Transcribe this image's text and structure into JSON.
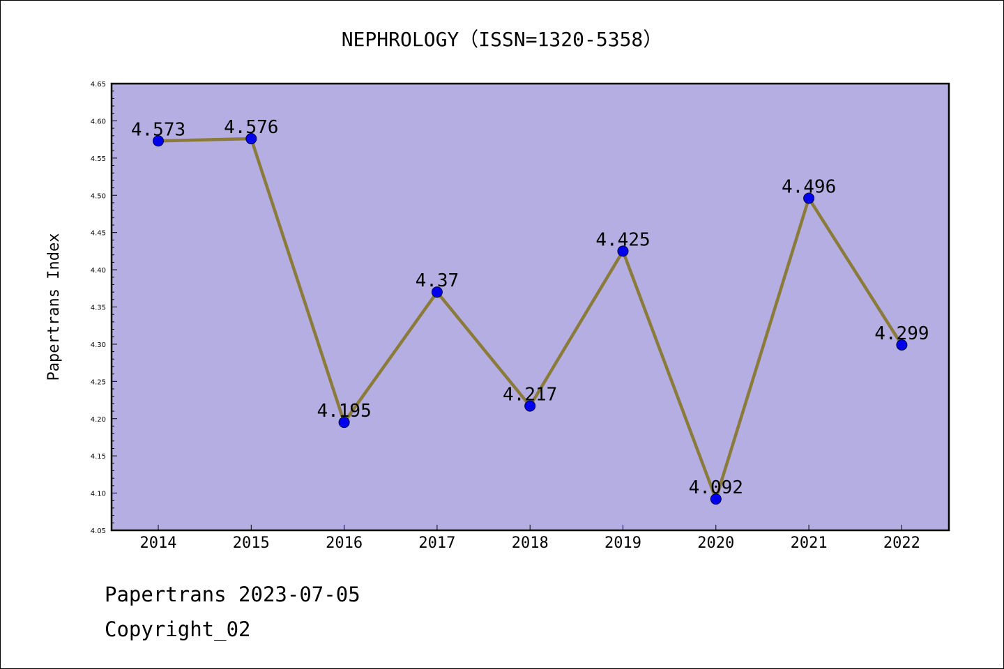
{
  "chart_data": {
    "type": "line",
    "title": "NEPHROLOGY（ISSN=1320-5358）",
    "xlabel": "",
    "ylabel": "Papertrans Index",
    "categories": [
      "2014",
      "2015",
      "2016",
      "2017",
      "2018",
      "2019",
      "2020",
      "2021",
      "2022"
    ],
    "series": [
      {
        "values": [
          4.573,
          4.576,
          4.195,
          4.37,
          4.217,
          4.425,
          4.092,
          4.496,
          4.299
        ],
        "data_labels": [
          "4.573",
          "4.576",
          "4.195",
          "4.37",
          "4.217",
          "4.425",
          "4.092",
          "4.496",
          "4.299"
        ]
      }
    ],
    "ylim": [
      4.05,
      4.65
    ],
    "yticks": [
      "4.05",
      "4.10",
      "4.15",
      "4.20",
      "4.25",
      "4.30",
      "4.35",
      "4.40",
      "4.45",
      "4.50",
      "4.55",
      "4.60",
      "4.65"
    ],
    "grid": false,
    "legend": "none",
    "colors": {
      "plot_background": "#b5aee2",
      "line": "#8b7b3a",
      "marker": "#0000ee",
      "axis": "#000000"
    }
  },
  "footer": {
    "date_text": "Papertrans 2023-07-05",
    "copyright_text": "Copyright_02"
  }
}
